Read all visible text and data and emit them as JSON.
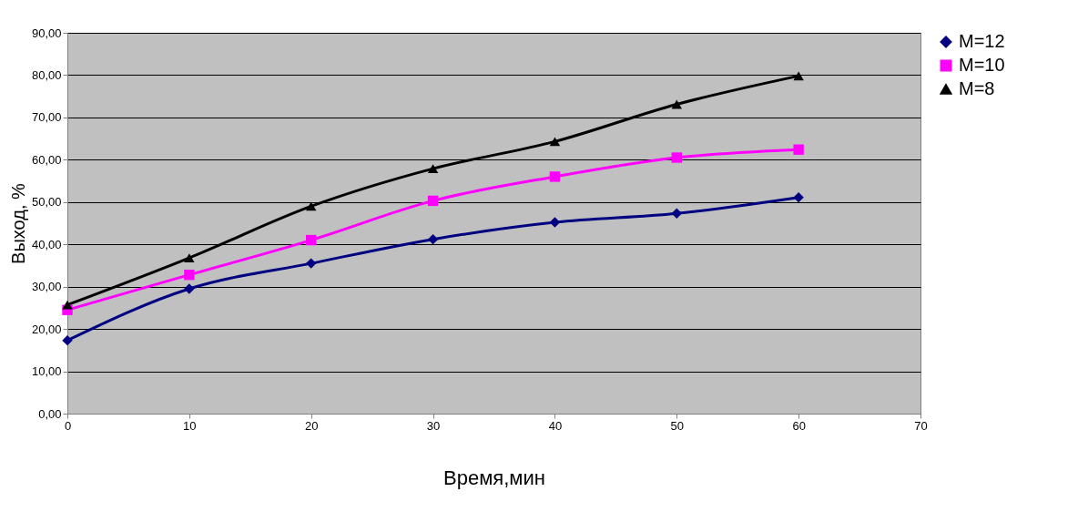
{
  "chart_data": {
    "type": "line",
    "xlabel": "Время,мин",
    "ylabel": "Выход, %",
    "x": [
      0,
      10,
      20,
      30,
      40,
      50,
      60
    ],
    "series": [
      {
        "name": "M=12",
        "color": "#000080",
        "marker": "diamond",
        "values": [
          17.3,
          29.5,
          35.5,
          41.2,
          45.2,
          47.3,
          51.1
        ]
      },
      {
        "name": "M=10",
        "color": "#ff00ff",
        "marker": "square",
        "values": [
          24.5,
          32.8,
          41.0,
          50.3,
          56.0,
          60.5,
          62.4
        ]
      },
      {
        "name": "M=8",
        "color": "#000000",
        "marker": "triangle",
        "values": [
          25.7,
          36.8,
          49.0,
          57.9,
          64.3,
          73.1,
          79.8
        ]
      }
    ],
    "xlim": [
      0,
      70
    ],
    "xticks": [
      0,
      10,
      20,
      30,
      40,
      50,
      60,
      70
    ],
    "ylim": [
      0,
      90
    ],
    "yticks": [
      {
        "value": 0,
        "label": "0,00"
      },
      {
        "value": 10,
        "label": "10,00"
      },
      {
        "value": 20,
        "label": "20,00"
      },
      {
        "value": 30,
        "label": "30,00"
      },
      {
        "value": 40,
        "label": "40,00"
      },
      {
        "value": 50,
        "label": "50,00"
      },
      {
        "value": 60,
        "label": "60,00"
      },
      {
        "value": 70,
        "label": "70,00"
      },
      {
        "value": 80,
        "label": "80,00"
      },
      {
        "value": 90,
        "label": "90,00"
      }
    ],
    "grid": "y",
    "legend": "right",
    "line_style": "solid"
  }
}
